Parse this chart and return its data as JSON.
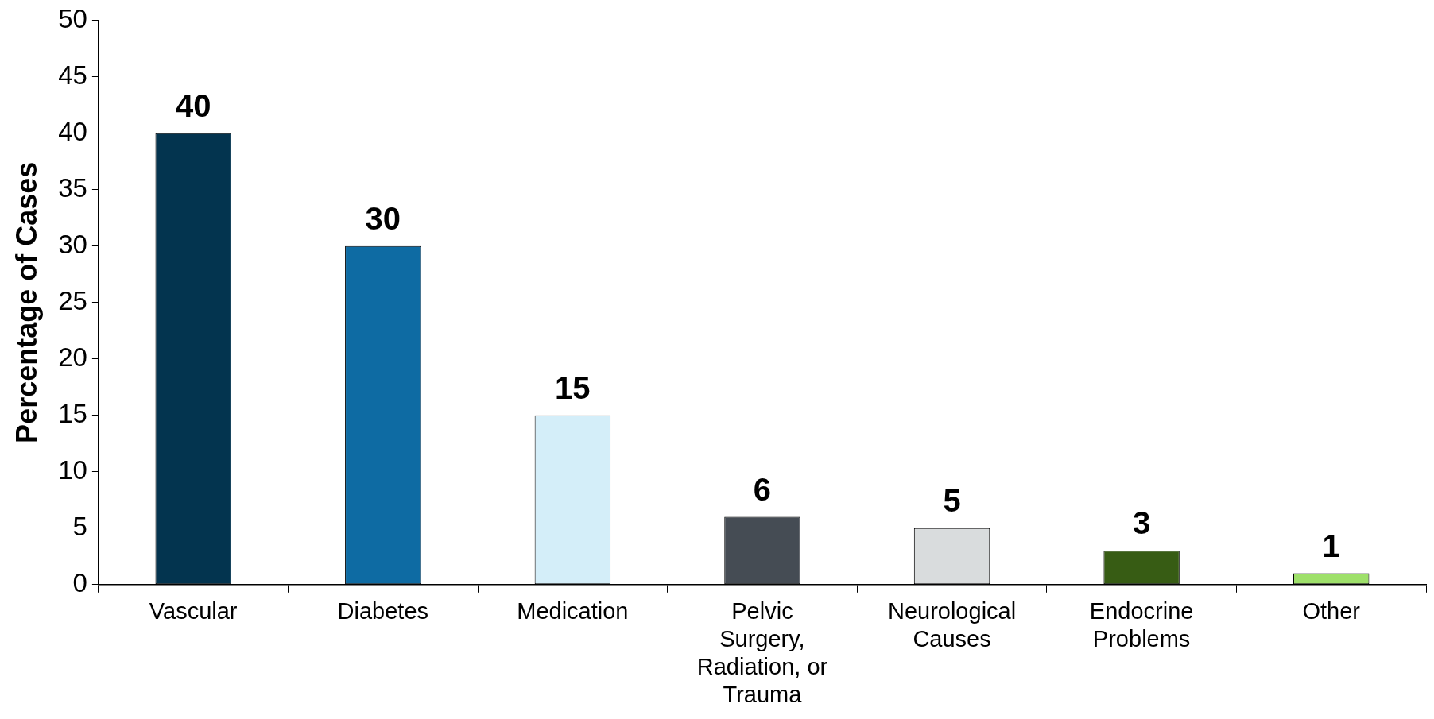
{
  "chart_data": {
    "type": "bar",
    "ylabel": "Percentage of Cases",
    "categories": [
      "Vascular",
      "Diabetes",
      "Medication",
      "Pelvic\nSurgery,\nRadiation, or\nTrauma",
      "Neurological\nCauses",
      "Endocrine\nProblems",
      "Other"
    ],
    "values": [
      40,
      30,
      15,
      6,
      5,
      3,
      1
    ],
    "colors": [
      "#03344f",
      "#0e6ba3",
      "#d4eef9",
      "#454c54",
      "#d9dcdd",
      "#375c14",
      "#9ee06a"
    ],
    "ylim": [
      0,
      50
    ],
    "yticks": [
      0,
      5,
      10,
      15,
      20,
      25,
      30,
      35,
      40,
      45,
      50
    ],
    "grid": false,
    "legend": false,
    "data_labels": true
  }
}
